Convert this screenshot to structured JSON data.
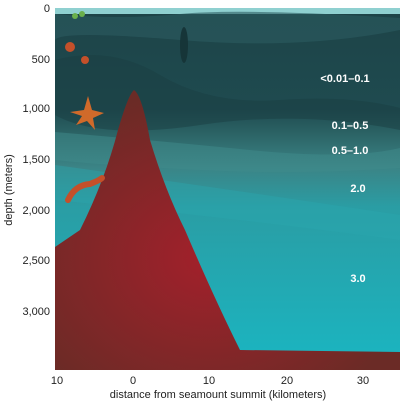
{
  "axes": {
    "x_title": "distance from seamount summit (kilometers)",
    "y_title": "depth (meters)",
    "x_ticks": [
      "10",
      "0",
      "10",
      "20",
      "30"
    ],
    "y_ticks": [
      "0",
      "500",
      "1,000",
      "1,500",
      "2,000",
      "2,500",
      "3,000"
    ]
  },
  "zones": [
    "<0.01–0.1",
    "0.1–0.5",
    "0.5–1.0",
    "2.0",
    "3.0"
  ]
}
